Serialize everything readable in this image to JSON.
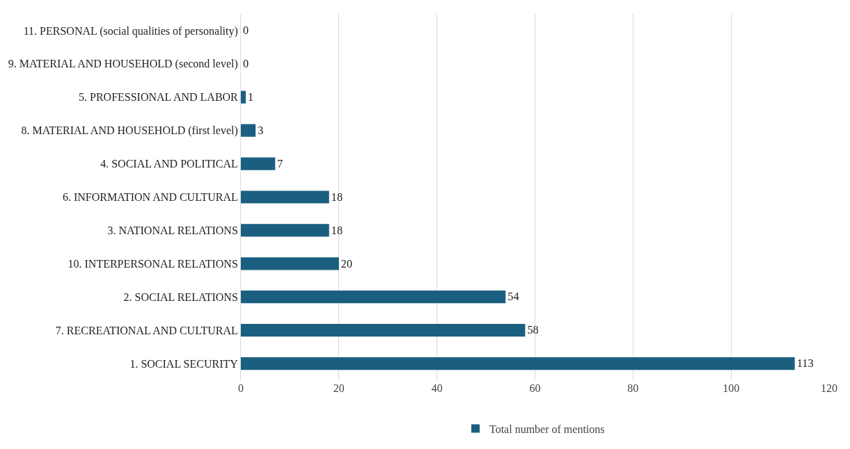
{
  "chart_data": {
    "type": "bar",
    "orientation": "horizontal",
    "categories": [
      "11. PERSONAL (social qualities of personality)",
      "9. MATERIAL AND HOUSEHOLD (second level)",
      "5. PROFESSIONAL AND LABOR",
      "8. MATERIAL AND HOUSEHOLD (first level)",
      "4. SOCIAL AND POLITICAL",
      "6. INFORMATION AND CULTURAL",
      "3. NATIONAL RELATIONS",
      "10. INTERPERSONAL RELATIONS",
      "2. SOCIAL RELATIONS",
      "7. RECREATIONAL AND CULTURAL",
      "1. SOCIAL SECURITY"
    ],
    "series": [
      {
        "name": "Total number of mentions",
        "color": "#1a5f80",
        "values": [
          0,
          0,
          1,
          3,
          7,
          18,
          18,
          20,
          54,
          58,
          113
        ]
      }
    ],
    "xlim": [
      0,
      120
    ],
    "xticks": [
      0,
      20,
      40,
      60,
      80,
      100,
      120
    ],
    "grid": "x",
    "legend": "bottom",
    "data_labels": true
  }
}
